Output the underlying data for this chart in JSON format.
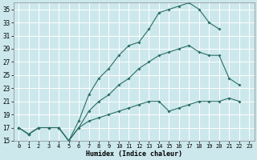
{
  "xlabel": "Humidex (Indice chaleur)",
  "bg_color": "#cce8ec",
  "grid_color": "#ffffff",
  "line_color": "#2a6e65",
  "xlim": [
    -0.5,
    23.5
  ],
  "ylim": [
    15,
    36
  ],
  "yticks": [
    15,
    17,
    19,
    21,
    23,
    25,
    27,
    29,
    31,
    33,
    35
  ],
  "xticks": [
    0,
    1,
    2,
    3,
    4,
    5,
    6,
    7,
    8,
    9,
    10,
    11,
    12,
    13,
    14,
    15,
    16,
    17,
    18,
    19,
    20,
    21,
    22,
    23
  ],
  "line1_x": [
    0,
    1,
    2,
    3,
    4,
    5,
    6,
    7,
    8,
    9,
    10,
    11,
    12,
    13,
    14,
    15,
    16,
    17,
    18,
    19,
    20
  ],
  "line1_y": [
    17,
    16,
    17,
    17,
    17,
    15,
    18,
    22,
    24.5,
    26,
    28,
    29.5,
    30,
    32,
    34.5,
    35,
    35.5,
    36,
    35,
    33,
    32
  ],
  "line2_x": [
    0,
    1,
    2,
    3,
    4,
    5,
    6,
    7,
    8,
    9,
    10,
    11,
    12,
    13,
    14,
    15,
    16,
    17,
    18,
    19,
    20,
    21,
    22
  ],
  "line2_y": [
    17,
    16,
    17,
    17,
    17,
    15,
    17,
    19.5,
    21,
    22,
    23.5,
    24.5,
    26,
    27,
    28,
    28.5,
    29,
    29.5,
    28.5,
    28,
    28,
    24.5,
    23.5
  ],
  "line3_x": [
    0,
    1,
    2,
    3,
    4,
    5,
    6,
    7,
    8,
    9,
    10,
    11,
    12,
    13,
    14,
    15,
    16,
    17,
    18,
    19,
    20,
    21,
    22
  ],
  "line3_y": [
    17,
    16,
    17,
    17,
    17,
    15,
    17,
    18,
    18.5,
    19,
    19.5,
    20,
    20.5,
    21,
    21,
    19.5,
    20,
    20.5,
    21,
    21,
    21,
    21.5,
    21
  ]
}
